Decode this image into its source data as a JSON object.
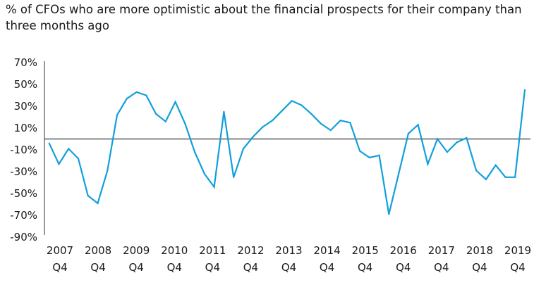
{
  "chart_data": {
    "type": "line",
    "title": "% of CFOs who are more optimistic about the financial prospects for their company than three months ago",
    "xlabel": "",
    "ylabel": "",
    "ylim": [
      -90,
      70
    ],
    "y_ticks": [
      70,
      50,
      30,
      10,
      -10,
      -30,
      -50,
      -70,
      -90
    ],
    "y_tick_labels": [
      "70%",
      "50%",
      "30%",
      "10%",
      "-10%",
      "-30%",
      "-50%",
      "-70%",
      "-90%"
    ],
    "x_tick_labels": [
      [
        "2007",
        "Q4"
      ],
      [
        "2008",
        "Q4"
      ],
      [
        "2009",
        "Q4"
      ],
      [
        "2010",
        "Q4"
      ],
      [
        "2011",
        "Q4"
      ],
      [
        "2012",
        "Q4"
      ],
      [
        "2013",
        "Q4"
      ],
      [
        "2014",
        "Q4"
      ],
      [
        "2015",
        "Q4"
      ],
      [
        "2016",
        "Q4"
      ],
      [
        "2017",
        "Q4"
      ],
      [
        "2018",
        "Q4"
      ],
      [
        "2019",
        "Q4"
      ]
    ],
    "reference_line": 0,
    "grid": false,
    "color": "#119fdc",
    "series": [
      {
        "values": [
          -4,
          -23,
          -9,
          -18,
          -52,
          -59,
          -29,
          22,
          37,
          43,
          40,
          23,
          16,
          34,
          14,
          -12,
          -32,
          -44,
          25,
          -35,
          -9,
          2,
          11,
          17,
          26,
          35,
          31,
          23,
          14,
          8,
          17,
          15,
          -11,
          -17,
          -15,
          -69,
          -32,
          5,
          13,
          -23,
          0,
          -12,
          -3,
          1,
          -29,
          -37,
          -24,
          -35,
          -35,
          45
        ]
      }
    ]
  }
}
